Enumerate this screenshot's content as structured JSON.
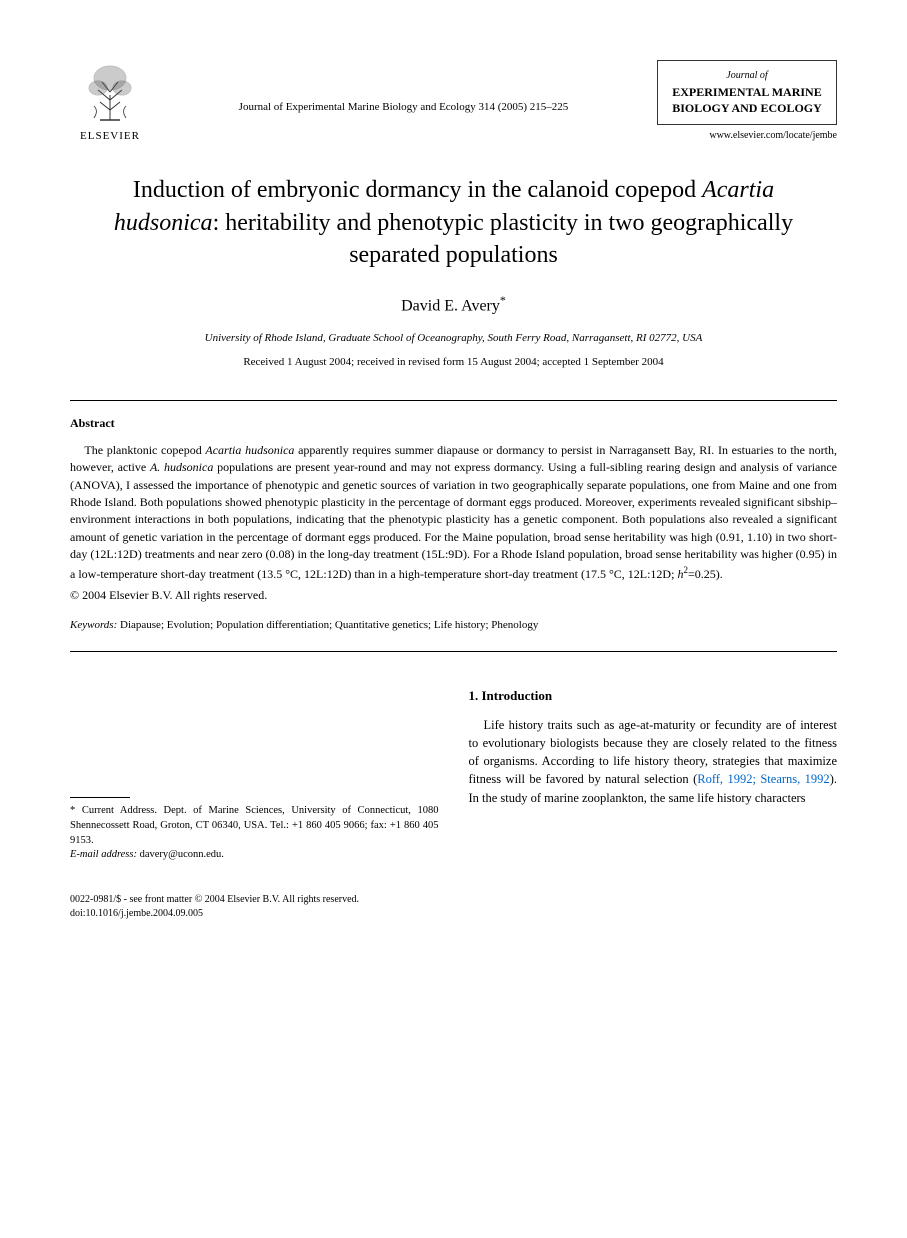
{
  "publisher": {
    "name": "ELSEVIER",
    "logo_color": "#333333"
  },
  "journal": {
    "reference": "Journal of Experimental Marine Biology and Ecology 314 (2005) 215–225",
    "box_line1": "Journal of",
    "box_line2": "EXPERIMENTAL MARINE BIOLOGY AND ECOLOGY",
    "url": "www.elsevier.com/locate/jembe"
  },
  "title": {
    "line1": "Induction of embryonic dormancy in the calanoid copepod",
    "species": "Acartia hudsonica",
    "line2": ": heritability and phenotypic plasticity in two geographically separated populations"
  },
  "author": {
    "name": "David E. Avery",
    "marker": "*"
  },
  "affiliation": "University of Rhode Island, Graduate School of Oceanography, South Ferry Road, Narragansett, RI 02772, USA",
  "dates": "Received 1 August 2004; received in revised form 15 August 2004; accepted 1 September 2004",
  "abstract": {
    "heading": "Abstract",
    "body_html": "The planktonic copepod <span class=\"species\">Acartia hudsonica</span> apparently requires summer diapause or dormancy to persist in Narragansett Bay, RI. In estuaries to the north, however, active <span class=\"species\">A. hudsonica</span> populations are present year-round and may not express dormancy. Using a full-sibling rearing design and analysis of variance (ANOVA), I assessed the importance of phenotypic and genetic sources of variation in two geographically separate populations, one from Maine and one from Rhode Island. Both populations showed phenotypic plasticity in the percentage of dormant eggs produced. Moreover, experiments revealed significant sibship–environment interactions in both populations, indicating that the phenotypic plasticity has a genetic component. Both populations also revealed a significant amount of genetic variation in the percentage of dormant eggs produced. For the Maine population, broad sense heritability was high (0.91, 1.10) in two short-day (12L:12D) treatments and near zero (0.08) in the long-day treatment (15L:9D). For a Rhode Island population, broad sense heritability was higher (0.95) in a low-temperature short-day treatment (13.5 °C, 12L:12D) than in a high-temperature short-day treatment (17.5 °C, 12L:12D; <span class=\"species\">h</span><sup>2</sup>=0.25).",
    "copyright": "© 2004 Elsevier B.V. All rights reserved."
  },
  "keywords": {
    "label": "Keywords:",
    "text": "Diapause; Evolution; Population differentiation; Quantitative genetics; Life history; Phenology"
  },
  "footnote": {
    "marker": "*",
    "address": "Current Address. Dept. of Marine Sciences, University of Connecticut, 1080 Shennecossett Road, Groton, CT 06340, USA. Tel.: +1 860 405 9066; fax: +1 860 405 9153.",
    "email_label": "E-mail address:",
    "email": "davery@uconn.edu."
  },
  "introduction": {
    "heading": "1. Introduction",
    "text_html": "Life history traits such as age-at-maturity or fecundity are of interest to evolutionary biologists because they are closely related to the fitness of organisms. According to life history theory, strategies that maximize fitness will be favored by natural selection (<span class=\"citation\">Roff, 1992; Stearns, 1992</span>). In the study of marine zooplankton, the same life history characters"
  },
  "doi": {
    "line1": "0022-0981/$ - see front matter © 2004 Elsevier B.V. All rights reserved.",
    "line2": "doi:10.1016/j.jembe.2004.09.005"
  },
  "colors": {
    "text": "#000000",
    "citation": "#0066cc",
    "background": "#ffffff"
  }
}
